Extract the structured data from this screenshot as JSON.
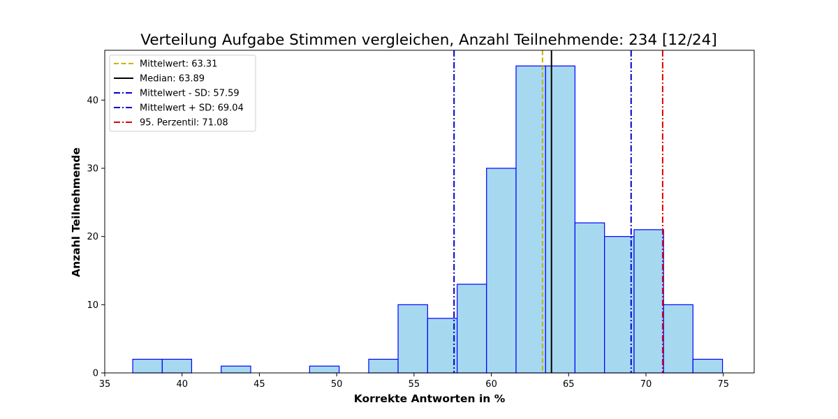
{
  "chart_data": {
    "type": "bar",
    "title": "Verteilung Aufgabe Stimmen vergleichen, Anzahl Teilnehmende: 234 [12/24]",
    "xlabel": "Korrekte Antworten in %",
    "ylabel": "Anzahl Teilnehmende",
    "xlim": [
      35,
      77
    ],
    "ylim": [
      0,
      47.3
    ],
    "xticks": [
      35,
      40,
      45,
      50,
      55,
      60,
      65,
      70,
      75
    ],
    "yticks": [
      0,
      10,
      20,
      30,
      40
    ],
    "bins": {
      "edges": [
        36.81,
        38.72,
        40.62,
        42.53,
        44.44,
        46.35,
        48.25,
        50.16,
        52.07,
        53.97,
        55.88,
        57.79,
        59.69,
        61.6,
        63.51,
        65.41,
        67.32,
        69.23,
        71.14,
        73.04,
        74.95
      ],
      "counts": [
        2,
        2,
        0,
        1,
        0,
        0,
        1,
        0,
        2,
        10,
        8,
        13,
        30,
        45,
        45,
        22,
        20,
        21,
        10,
        2
      ]
    },
    "bar_fill": "#a6d9f0",
    "bar_edge": "#0000ff",
    "reference_lines": [
      {
        "label": "Mittelwert: 63.31",
        "x": 63.31,
        "color": "#c8b400",
        "style": "dashed"
      },
      {
        "label": "Median: 63.89",
        "x": 63.89,
        "color": "#000000",
        "style": "solid"
      },
      {
        "label": "Mittelwert - SD: 57.59",
        "x": 57.59,
        "color": "#0000c8",
        "style": "dashdot"
      },
      {
        "label": "Mittelwert + SD: 69.04",
        "x": 69.04,
        "color": "#0000c8",
        "style": "dashdot"
      },
      {
        "label": "95. Perzentil: 71.08",
        "x": 71.08,
        "color": "#e00000",
        "style": "dashdot"
      }
    ],
    "legend_position": "upper-left",
    "grid": false
  }
}
